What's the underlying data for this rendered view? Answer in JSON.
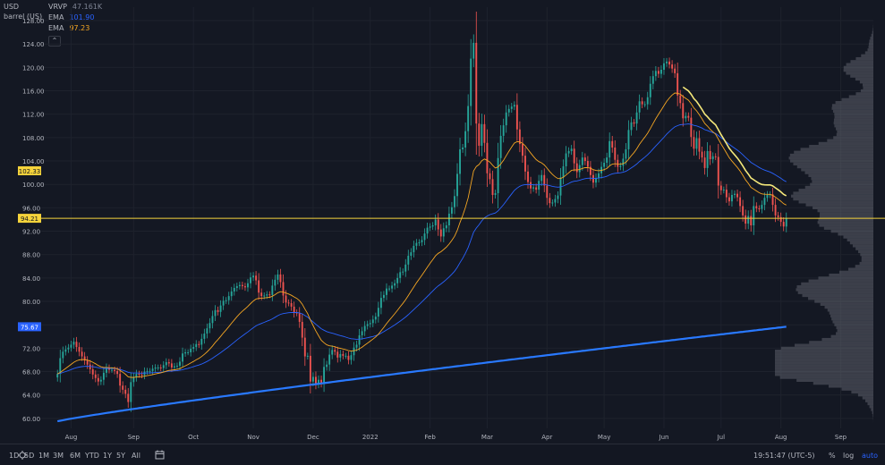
{
  "header": {
    "currency": "USD",
    "unit": "barrel (US)"
  },
  "legend": [
    {
      "name": "VRVP",
      "value": "47.161K",
      "color": "#7e8494"
    },
    {
      "name": "EMA",
      "value": "101.90",
      "color": "#2962ff"
    },
    {
      "name": "EMA",
      "value": "97.23",
      "color": "#f5a623"
    }
  ],
  "collapse_glyph": "⌃",
  "timeframes": [
    "1D",
    "5D",
    "1M",
    "3M",
    "6M",
    "YTD",
    "1Y",
    "5Y",
    "All"
  ],
  "clock": "19:51:47 (UTC-5)",
  "scale_buttons": [
    "%",
    "log",
    "auto"
  ],
  "chart_data": {
    "type": "candlestick",
    "y_ticks": [
      60,
      64,
      68,
      72,
      76,
      80,
      84,
      88,
      92,
      96,
      100,
      104,
      108,
      112,
      116,
      120,
      124,
      128
    ],
    "ylim": [
      58.3,
      130.3
    ],
    "x_ticks": [
      {
        "label": "Aug",
        "x": 5
      },
      {
        "label": "Sep",
        "x": 28
      },
      {
        "label": "Oct",
        "x": 50
      },
      {
        "label": "Nov",
        "x": 72
      },
      {
        "label": "Dec",
        "x": 94
      },
      {
        "label": "2022",
        "x": 115
      },
      {
        "label": "Feb",
        "x": 137
      },
      {
        "label": "Mar",
        "x": 158
      },
      {
        "label": "Apr",
        "x": 180
      },
      {
        "label": "May",
        "x": 201
      },
      {
        "label": "Jun",
        "x": 223
      },
      {
        "label": "Jul",
        "x": 244
      },
      {
        "label": "Aug",
        "x": 266
      },
      {
        "label": "Sep",
        "x": 288
      }
    ],
    "xlim": [
      -6,
      300
    ],
    "price_labels": [
      {
        "value": 102.33,
        "text": "102.33",
        "bg": "#f5d33b",
        "fg": "#131722"
      },
      {
        "value": 94.21,
        "text": "94.21",
        "bg": "#f5d33b",
        "fg": "#131722"
      },
      {
        "value": 75.67,
        "text": "75.67",
        "bg": "#2962ff",
        "fg": "#ffffff"
      }
    ],
    "hline": {
      "value": 94.21,
      "color": "#f5d33b"
    },
    "close": [
      67.6,
      70.3,
      71.4,
      71.8,
      72.1,
      72.6,
      73.1,
      72.2,
      71.4,
      70.6,
      69.9,
      69.2,
      68.4,
      67.5,
      66.9,
      66.3,
      66.6,
      67.8,
      68.6,
      68.3,
      68.3,
      68.1,
      67.6,
      65.6,
      64.9,
      64.2,
      62.8,
      66.2,
      67.0,
      67.6,
      67.5,
      67.4,
      68.0,
      68.1,
      68.1,
      68.5,
      68.7,
      68.7,
      68.6,
      69.1,
      69.6,
      69.4,
      68.7,
      68.9,
      69.0,
      69.7,
      71.1,
      71.3,
      71.3,
      71.9,
      72.2,
      72.7,
      72.6,
      73.6,
      74.5,
      75.4,
      76.3,
      77.5,
      78.5,
      78.2,
      79.3,
      80.1,
      80.2,
      80.9,
      81.7,
      82.3,
      82.6,
      82.8,
      82.6,
      82.4,
      83.1,
      84.1,
      84.4,
      83.6,
      81.5,
      80.9,
      81.0,
      81.2,
      81.1,
      82.7,
      83.7,
      84.6,
      83.3,
      81.0,
      79.8,
      79.7,
      79.1,
      78.1,
      78.0,
      76.5,
      73.8,
      70.6,
      70.7,
      66.3,
      67.1,
      65.9,
      66.6,
      66.0,
      68.8,
      69.2,
      70.9,
      71.7,
      71.4,
      70.4,
      71.0,
      70.7,
      70.7,
      70.0,
      70.8,
      72.1,
      72.6,
      74.2,
      74.9,
      75.8,
      76.1,
      76.3,
      76.9,
      77.4,
      78.9,
      80.6,
      81.1,
      82.2,
      82.2,
      82.7,
      83.1,
      84.0,
      85.0,
      85.1,
      86.3,
      87.8,
      88.4,
      89.5,
      90.0,
      90.1,
      90.5,
      91.6,
      92.6,
      92.8,
      93.0,
      94.0,
      92.3,
      91.1,
      92.5,
      93.0,
      95.0,
      96.1,
      98.0,
      101.8,
      106.0,
      106.3,
      109.1,
      113.4,
      121.5,
      124.2,
      110.4,
      106.6,
      110.3,
      107.1,
      101.9,
      100.9,
      98.2,
      98.5,
      104.5,
      108.3,
      110.1,
      112.3,
      112.9,
      113.3,
      113.6,
      109.4,
      106.9,
      104.9,
      102.2,
      100.4,
      99.3,
      99.5,
      99.1,
      100.6,
      101.6,
      99.8,
      97.7,
      96.8,
      96.9,
      97.5,
      98.1,
      101.2,
      103.1,
      105.3,
      105.7,
      106.1,
      103.6,
      102.1,
      103.3,
      104.6,
      104.0,
      103.0,
      101.6,
      100.3,
      101.1,
      101.9,
      103.0,
      103.7,
      104.6,
      107.4,
      106.3,
      104.2,
      103.0,
      103.2,
      104.4,
      106.0,
      109.3,
      110.6,
      110.4,
      112.3,
      114.2,
      113.7,
      113.7,
      114.9,
      117.2,
      118.5,
      119.4,
      118.9,
      119.6,
      120.7,
      121.0,
      120.5,
      119.8,
      119.0,
      115.2,
      113.9,
      111.3,
      111.7,
      111.4,
      108.1,
      106.1,
      107.9,
      105.6,
      104.6,
      102.8,
      105.7,
      104.3,
      104.8,
      104.7,
      99.8,
      99.0,
      99.1,
      97.8,
      97.1,
      98.2,
      98.4,
      97.8,
      96.3,
      94.7,
      93.3,
      94.6,
      93.0,
      96.3,
      95.9,
      95.8,
      96.5,
      97.7,
      98.2,
      98.3,
      96.5,
      94.7,
      94.4,
      93.6,
      92.8,
      94.2
    ]
  }
}
